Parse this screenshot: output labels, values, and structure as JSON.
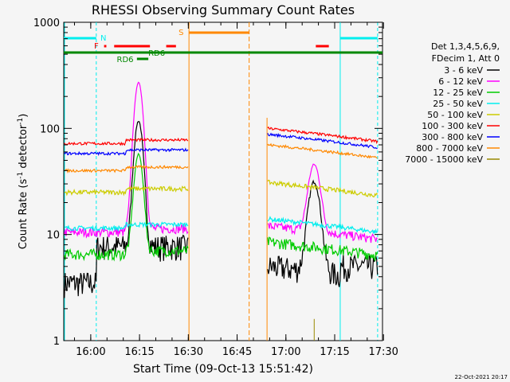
{
  "chart_data": {
    "type": "line",
    "title": "RHESSI Observing Summary Count Rates",
    "xlabel": "Start Time (09-Oct-13 15:51:42)",
    "ylabel_main": "Count Rate (s",
    "ylabel_sup1": "-1",
    "ylabel_mid": " detector",
    "ylabel_sup2": "-1",
    "ylabel_end": ")",
    "y_scale": "log",
    "ylim": [
      1,
      1000
    ],
    "xlim_minutes": [
      0,
      98
    ],
    "x_tick_labels": [
      "16:00",
      "16:15",
      "16:30",
      "16:45",
      "17:00",
      "17:15",
      "17:30"
    ],
    "x_tick_minutes": [
      8.3,
      23.3,
      38.3,
      53.3,
      68.3,
      83.3,
      98.3
    ],
    "y_tick_labels": [
      "1",
      "10",
      "100",
      "1000"
    ],
    "y_tick_values": [
      1,
      10,
      100,
      1000
    ],
    "legend_header": [
      "Det 1,3,4,5,6,9,",
      "FDecim 1, Att 0"
    ],
    "series": [
      {
        "name": "3 - 6 keV",
        "color": "#000000",
        "level": 3.5,
        "post": 5.0,
        "noise": 0.28
      },
      {
        "name": "6 - 12 keV",
        "color": "#ff00ff",
        "level": 10.5,
        "post": 12.0,
        "noise": 0.1
      },
      {
        "name": "12 - 25 keV",
        "color": "#00cc00",
        "level": 6.5,
        "post": 8.5,
        "noise": 0.12
      },
      {
        "name": "25 - 50 keV",
        "color": "#00eeee",
        "level": 11.5,
        "post": 14.0,
        "noise": 0.05
      },
      {
        "name": "50 - 100 keV",
        "color": "#cccc00",
        "level": 25,
        "post": 31,
        "noise": 0.05
      },
      {
        "name": "100 - 300 keV",
        "color": "#ff0000",
        "level": 72,
        "post": 100,
        "noise": 0.03
      },
      {
        "name": "300 - 800 keV",
        "color": "#0000ff",
        "level": 58,
        "post": 88,
        "noise": 0.03
      },
      {
        "name": "800 - 7000 keV",
        "color": "#ff8800",
        "level": 40,
        "post": 70,
        "noise": 0.03
      },
      {
        "name": "7000 - 15000 keV",
        "color": "#998800",
        "level": 0,
        "post": 0,
        "noise": 0
      }
    ],
    "flags": [
      {
        "label": "N",
        "color": "#00eeee"
      },
      {
        "label": "F",
        "color": "#ff0000"
      },
      {
        "label": "S",
        "color": "#ff8800"
      },
      {
        "label": "RD6",
        "color": "#008800"
      },
      {
        "label": "RD6",
        "color": "#008800"
      }
    ],
    "intervals": {
      "night_start_min": 0,
      "night_end_min": 10,
      "saa_start_min": 38.5,
      "saa_end_min": 57,
      "night2_start_min": 85,
      "night2_end_min": 96.5,
      "gap_start_min": 39,
      "gap_end_min": 62.5
    },
    "flare": {
      "peak_min": 23,
      "peak_6_12": 260,
      "peak_3_6": 110,
      "peak_12_25": 50
    },
    "late_bump": {
      "peak_min": 77,
      "peak_6_12": 35,
      "peak_3_6": 27
    }
  },
  "footer_date": "22-Oct-2021 20:17"
}
